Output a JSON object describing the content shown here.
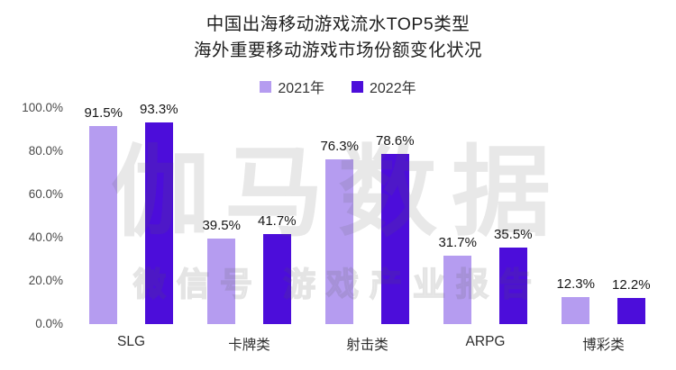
{
  "title": {
    "line1": "中国出海移动游戏流水TOP5类型",
    "line2": "海外重要移动游戏市场份额变化状况"
  },
  "legend": [
    {
      "label": "2021年",
      "color": "#b59cf0"
    },
    {
      "label": "2022年",
      "color": "#4c0dda"
    }
  ],
  "watermark": {
    "line1": "伽马数据",
    "line2": "微信号 游戏产业报告"
  },
  "chart_data": {
    "type": "bar",
    "categories": [
      "SLG",
      "卡牌类",
      "射击类",
      "ARPG",
      "博彩类"
    ],
    "series": [
      {
        "name": "2021年",
        "color": "#b59cf0",
        "values": [
          91.5,
          39.5,
          76.3,
          31.7,
          12.3
        ]
      },
      {
        "name": "2022年",
        "color": "#4c0dda",
        "values": [
          93.3,
          41.7,
          78.6,
          35.5,
          12.2
        ]
      }
    ],
    "value_label_suffix": "%",
    "title": "中国出海移动游戏流水TOP5类型 海外重要移动游戏市场份额变化状况",
    "xlabel": "",
    "ylabel": "",
    "ylim": [
      0,
      100
    ],
    "yticks": [
      "100.0%",
      "80.0%",
      "60.0%",
      "40.0%",
      "20.0%",
      "0.0%"
    ],
    "grid": false,
    "legend_position": "top"
  }
}
